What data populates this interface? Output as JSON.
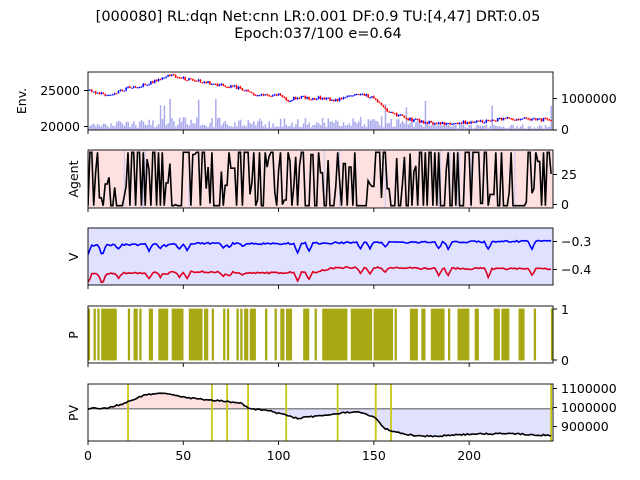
{
  "figure": {
    "title_line1": "[000080] RL:dqn Net:cnn LR:0.001 DF:0.9 TU:[4,47] DRT:0.05",
    "title_line2": "Epoch:037/100 e=0.64"
  },
  "colors": {
    "up": "#0000ff",
    "down": "#ff0000",
    "volume": "#aaaaee",
    "agent_bg": "#ffe0e0",
    "agent_line": "#000000",
    "v_bg": "#e0e0ff",
    "v_line1": "#0000ff",
    "v_line2": "#dd0022",
    "p_fill": "#a8a814",
    "pv_line": "#000000",
    "pv_ref": "#888888",
    "pv_gain": "#ffe0e0",
    "pv_loss": "#e0e0ff",
    "trade_marker": "#c8c814"
  },
  "chart_data": [
    {
      "panel": "env",
      "type": "candlestick+bar",
      "ylabel": "Env.",
      "xlim": [
        0,
        244
      ],
      "ylim_left": [
        19500,
        27500
      ],
      "yticks_left": [
        "20000",
        "25000"
      ],
      "ytick_values_left": [
        20000,
        25000
      ],
      "ylim_right": [
        0,
        1750000
      ],
      "yticks_right": [
        "0",
        "1000000"
      ],
      "ytick_values_right": [
        0,
        1000000
      ],
      "price_anchors": [
        [
          0,
          24900
        ],
        [
          10,
          24200
        ],
        [
          20,
          25200
        ],
        [
          30,
          25800
        ],
        [
          40,
          26800
        ],
        [
          45,
          27000
        ],
        [
          50,
          26600
        ],
        [
          60,
          26100
        ],
        [
          70,
          25700
        ],
        [
          80,
          25300
        ],
        [
          85,
          24600
        ],
        [
          90,
          24400
        ],
        [
          100,
          24300
        ],
        [
          105,
          23600
        ],
        [
          110,
          24000
        ],
        [
          120,
          23900
        ],
        [
          130,
          23700
        ],
        [
          140,
          24400
        ],
        [
          150,
          24100
        ],
        [
          155,
          22600
        ],
        [
          160,
          21700
        ],
        [
          170,
          20900
        ],
        [
          180,
          20500
        ],
        [
          190,
          20400
        ],
        [
          200,
          20600
        ],
        [
          210,
          20800
        ],
        [
          220,
          21100
        ],
        [
          230,
          21000
        ],
        [
          240,
          20900
        ],
        [
          244,
          21000
        ]
      ],
      "volume_anchors": [
        [
          0,
          150000
        ],
        [
          50,
          260000
        ],
        [
          100,
          230000
        ],
        [
          150,
          290000
        ],
        [
          200,
          120000
        ],
        [
          244,
          110000
        ]
      ]
    },
    {
      "panel": "agent",
      "type": "line",
      "ylabel": "Agent",
      "xlim": [
        0,
        244
      ],
      "ylim": [
        -2,
        49
      ],
      "yticks": [
        "0",
        "25"
      ],
      "ytick_values": [
        0,
        25
      ]
    },
    {
      "panel": "value",
      "type": "line",
      "ylabel": "V",
      "xlim": [
        0,
        244
      ],
      "ylim": [
        -0.47,
        -0.21
      ],
      "yticks": [
        "−0.3",
        "−0.4"
      ],
      "ytick_values": [
        -0.3,
        -0.4
      ],
      "series_anchors": [
        [
          [
            0,
            -0.29
          ],
          [
            30,
            -0.285
          ],
          [
            60,
            -0.28
          ],
          [
            90,
            -0.282
          ],
          [
            120,
            -0.28
          ],
          [
            150,
            -0.275
          ],
          [
            180,
            -0.275
          ],
          [
            210,
            -0.272
          ],
          [
            244,
            -0.27
          ]
        ],
        [
          [
            0,
            -0.42
          ],
          [
            30,
            -0.415
          ],
          [
            60,
            -0.41
          ],
          [
            90,
            -0.415
          ],
          [
            120,
            -0.41
          ],
          [
            130,
            -0.39
          ],
          [
            150,
            -0.39
          ],
          [
            180,
            -0.395
          ],
          [
            210,
            -0.395
          ],
          [
            244,
            -0.395
          ]
        ]
      ]
    },
    {
      "panel": "prob",
      "type": "bar",
      "ylabel": "P",
      "xlim": [
        0,
        244
      ],
      "ylim": [
        -0.05,
        1.05
      ],
      "yticks": [
        "0",
        "1"
      ],
      "ytick_values": [
        0,
        1
      ]
    },
    {
      "panel": "pv",
      "type": "line",
      "ylabel": "PV",
      "xlim": [
        0,
        244
      ],
      "ylim": [
        830000,
        1130000
      ],
      "yticks": [
        "900000",
        "1000000",
        "1100000"
      ],
      "ytick_values": [
        900000,
        1000000,
        1100000
      ],
      "reference": 1000000,
      "pv_anchors": [
        [
          0,
          1000000
        ],
        [
          10,
          1005000
        ],
        [
          20,
          1030000
        ],
        [
          30,
          1075000
        ],
        [
          40,
          1080000
        ],
        [
          50,
          1060000
        ],
        [
          60,
          1050000
        ],
        [
          70,
          1040000
        ],
        [
          80,
          1030000
        ],
        [
          85,
          1000000
        ],
        [
          95,
          990000
        ],
        [
          100,
          975000
        ],
        [
          110,
          950000
        ],
        [
          120,
          960000
        ],
        [
          130,
          975000
        ],
        [
          140,
          985000
        ],
        [
          150,
          960000
        ],
        [
          155,
          900000
        ],
        [
          160,
          880000
        ],
        [
          170,
          860000
        ],
        [
          180,
          855000
        ],
        [
          200,
          865000
        ],
        [
          220,
          870000
        ],
        [
          240,
          860000
        ],
        [
          243,
          855000
        ]
      ],
      "trade_markers": [
        21,
        65,
        73,
        84,
        104,
        131,
        151,
        159,
        243
      ],
      "xticks": [
        "0",
        "50",
        "100",
        "150",
        "200"
      ],
      "xtick_values": [
        0,
        50,
        100,
        150,
        200
      ]
    }
  ]
}
